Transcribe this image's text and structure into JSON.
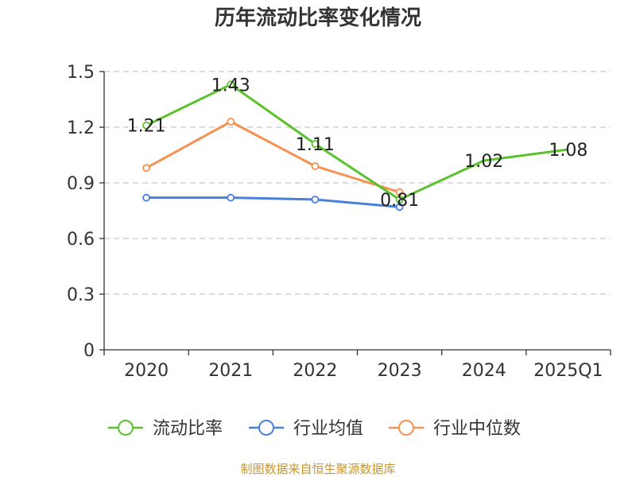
{
  "chart_data": {
    "type": "line",
    "title": "历年流动比率变化情况",
    "categories": [
      "2020",
      "2021",
      "2022",
      "2023",
      "2024",
      "2025Q1"
    ],
    "ylim": [
      0,
      1.5
    ],
    "yticks": [
      0,
      0.3,
      0.6,
      0.9,
      1.2,
      1.5
    ],
    "ytick_labels": [
      "0",
      "0.3",
      "0.6",
      "0.9",
      "1.2",
      "1.5"
    ],
    "grid": "horizontal-dashed",
    "legend_position": "bottom",
    "series": [
      {
        "name": "流动比率",
        "color": "#5bc22e",
        "values": [
          1.21,
          1.43,
          1.11,
          0.81,
          1.02,
          1.08
        ],
        "labels": [
          "1.21",
          "1.43",
          "1.11",
          "0.81",
          "1.02",
          "1.08"
        ],
        "show_markers": [
          true,
          true,
          true,
          true,
          false,
          false
        ]
      },
      {
        "name": "行业均值",
        "color": "#4a7fdc",
        "values": [
          0.82,
          0.82,
          0.81,
          0.77,
          null,
          null
        ],
        "show_markers": [
          true,
          true,
          true,
          true,
          false,
          false
        ]
      },
      {
        "name": "行业中位数",
        "color": "#f79151",
        "values": [
          0.98,
          1.23,
          0.99,
          0.85,
          null,
          null
        ],
        "show_markers": [
          true,
          true,
          true,
          true,
          false,
          false
        ]
      }
    ]
  },
  "footer": {
    "source": "制图数据来自恒生聚源数据库"
  }
}
